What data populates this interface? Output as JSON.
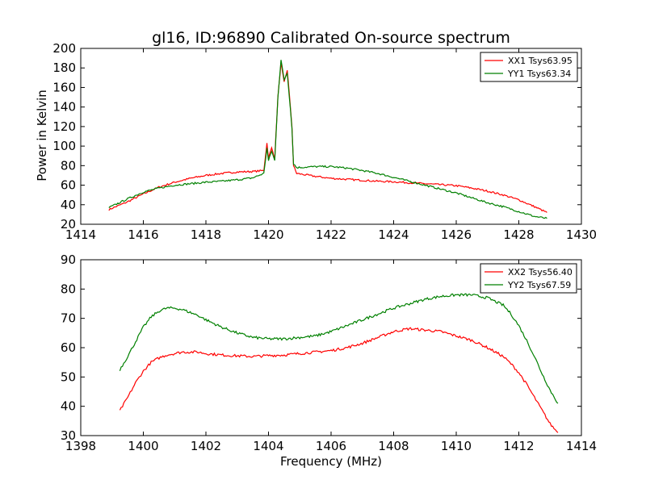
{
  "figure": {
    "title": "gl16, ID:96890 Calibrated On-source spectrum",
    "ylabel": "Power in Kelvin",
    "xlabel": "Frequency (MHz)"
  },
  "chart_data": [
    {
      "type": "line",
      "title": "gl16, ID:96890 Calibrated On-source spectrum",
      "xlabel": "",
      "ylabel": "Power in Kelvin",
      "xlim": [
        1414,
        1430
      ],
      "ylim": [
        20,
        200
      ],
      "xticks": [
        1414,
        1416,
        1418,
        1420,
        1422,
        1424,
        1426,
        1428,
        1430
      ],
      "yticks": [
        20,
        40,
        60,
        80,
        100,
        120,
        140,
        160,
        180,
        200
      ],
      "grid": false,
      "legend": "top-right",
      "series": [
        {
          "name": "XX1 Tsys63.95",
          "color": "#ff0000",
          "x": [
            1414.9,
            1415.5,
            1416.0,
            1416.5,
            1417.0,
            1417.5,
            1418.0,
            1418.5,
            1419.0,
            1419.5,
            1419.85,
            1419.95,
            1420.0,
            1420.1,
            1420.2,
            1420.3,
            1420.4,
            1420.5,
            1420.6,
            1420.7,
            1420.75,
            1420.8,
            1420.9,
            1421.5,
            1422.0,
            1422.5,
            1423.0,
            1423.5,
            1424.0,
            1424.5,
            1425.0,
            1425.5,
            1426.0,
            1426.5,
            1427.0,
            1427.5,
            1428.0,
            1428.5,
            1428.9
          ],
          "y": [
            35,
            43,
            51,
            58,
            63,
            67,
            70,
            72,
            73.5,
            74,
            75,
            103,
            88,
            98,
            88,
            150,
            185,
            165,
            178,
            140,
            120,
            80,
            72,
            69,
            67,
            66,
            65,
            64,
            63.5,
            62.5,
            61.5,
            60.5,
            59.5,
            57,
            54,
            50,
            45,
            38,
            32
          ]
        },
        {
          "name": "YY1 Tsys63.34",
          "color": "#008000",
          "x": [
            1414.9,
            1415.5,
            1416.0,
            1416.5,
            1417.0,
            1417.5,
            1418.0,
            1418.5,
            1419.0,
            1419.5,
            1419.85,
            1419.95,
            1420.0,
            1420.1,
            1420.2,
            1420.3,
            1420.4,
            1420.5,
            1420.6,
            1420.7,
            1420.75,
            1420.8,
            1420.9,
            1421.5,
            1422.0,
            1422.5,
            1423.0,
            1423.5,
            1424.0,
            1424.5,
            1425.0,
            1425.5,
            1426.0,
            1426.5,
            1427.0,
            1427.5,
            1428.0,
            1428.5,
            1428.9
          ],
          "y": [
            37,
            46,
            53,
            57,
            60,
            61.5,
            63,
            64,
            65.5,
            67.5,
            72,
            98,
            85,
            95,
            85,
            150,
            188,
            168,
            175,
            138,
            118,
            82,
            78,
            79,
            79,
            77.5,
            75,
            72,
            68,
            64,
            60,
            56,
            52,
            47,
            42,
            38,
            33,
            28,
            26
          ]
        }
      ]
    },
    {
      "type": "line",
      "title": "",
      "xlabel": "Frequency (MHz)",
      "ylabel": "",
      "xlim": [
        1398,
        1414
      ],
      "ylim": [
        30,
        90
      ],
      "xticks": [
        1398,
        1400,
        1402,
        1404,
        1406,
        1408,
        1410,
        1412,
        1414
      ],
      "yticks": [
        30,
        40,
        50,
        60,
        70,
        80,
        90
      ],
      "grid": false,
      "legend": "top-right",
      "series": [
        {
          "name": "XX2 Tsys56.40",
          "color": "#ff0000",
          "x": [
            1399.25,
            1399.5,
            1399.75,
            1400.0,
            1400.25,
            1400.5,
            1400.75,
            1401.0,
            1401.25,
            1401.5,
            1401.75,
            1402.0,
            1402.5,
            1403.0,
            1403.5,
            1404.0,
            1404.5,
            1405.0,
            1405.5,
            1406.0,
            1406.5,
            1407.0,
            1407.5,
            1408.0,
            1408.5,
            1409.0,
            1409.5,
            1410.0,
            1410.5,
            1411.0,
            1411.5,
            1411.75,
            1412.0,
            1412.25,
            1412.5,
            1412.75,
            1413.0,
            1413.25
          ],
          "y": [
            38.5,
            43,
            48,
            52,
            55,
            56.5,
            57.5,
            58,
            58.5,
            58.5,
            58.5,
            58,
            57.5,
            57.2,
            57,
            57.3,
            57.5,
            58,
            58.5,
            59,
            60,
            61.5,
            63.5,
            65.5,
            66.5,
            66,
            65.5,
            64,
            62.5,
            60,
            57,
            54.5,
            51.5,
            47.5,
            43,
            38.5,
            34,
            31
          ]
        },
        {
          "name": "YY2 Tsys67.59",
          "color": "#008000",
          "x": [
            1399.25,
            1399.5,
            1399.75,
            1400.0,
            1400.25,
            1400.5,
            1400.75,
            1401.0,
            1401.25,
            1401.5,
            1401.75,
            1402.0,
            1402.5,
            1403.0,
            1403.5,
            1404.0,
            1404.5,
            1405.0,
            1405.5,
            1406.0,
            1406.5,
            1407.0,
            1407.5,
            1408.0,
            1408.5,
            1409.0,
            1409.5,
            1410.0,
            1410.5,
            1411.0,
            1411.5,
            1411.75,
            1412.0,
            1412.25,
            1412.5,
            1412.75,
            1413.0,
            1413.25
          ],
          "y": [
            52.5,
            57,
            62,
            67,
            70.5,
            72.5,
            73.5,
            73.5,
            73,
            72,
            71,
            69.5,
            67,
            65,
            63.5,
            63,
            63,
            63.5,
            64,
            65.5,
            67.5,
            69.5,
            71.5,
            73.5,
            75,
            76.5,
            77.5,
            78,
            78,
            77,
            74.5,
            71.5,
            67.5,
            62.5,
            57,
            51,
            45.5,
            41
          ]
        }
      ]
    }
  ]
}
